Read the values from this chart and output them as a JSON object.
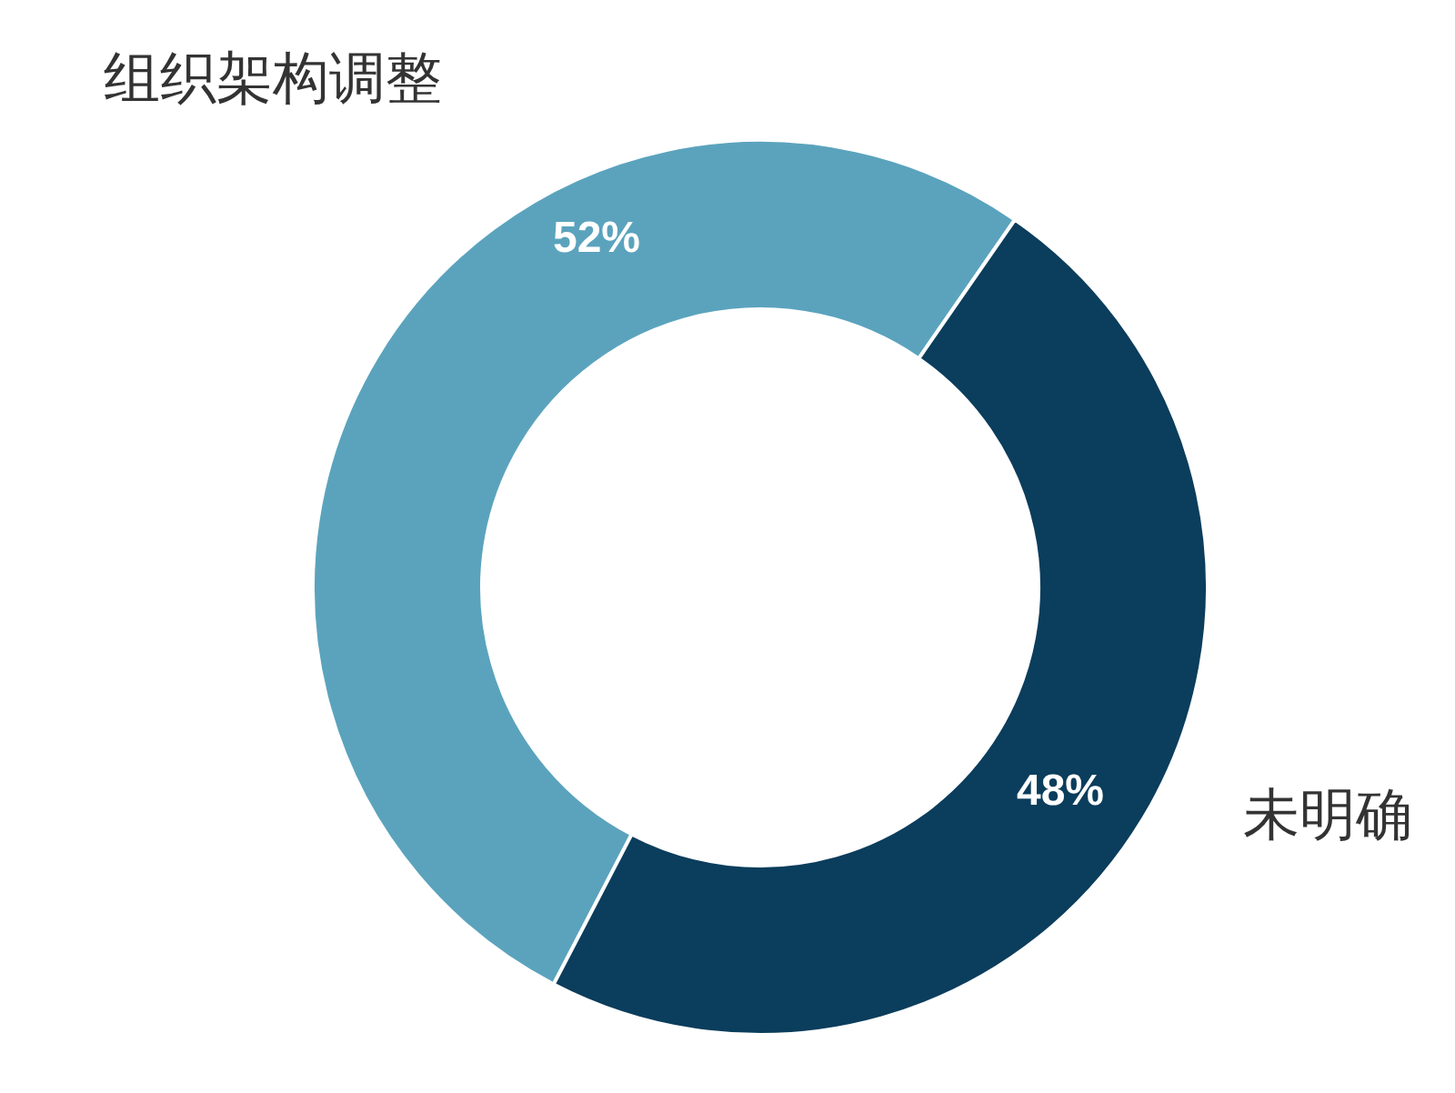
{
  "chart_data": {
    "type": "donut",
    "categories": [
      "组织架构调整",
      "未明确"
    ],
    "values": [
      52,
      48
    ],
    "colors": [
      "#5ba3bd",
      "#0b3d5c"
    ],
    "value_labels": [
      "52%",
      "48%"
    ]
  }
}
